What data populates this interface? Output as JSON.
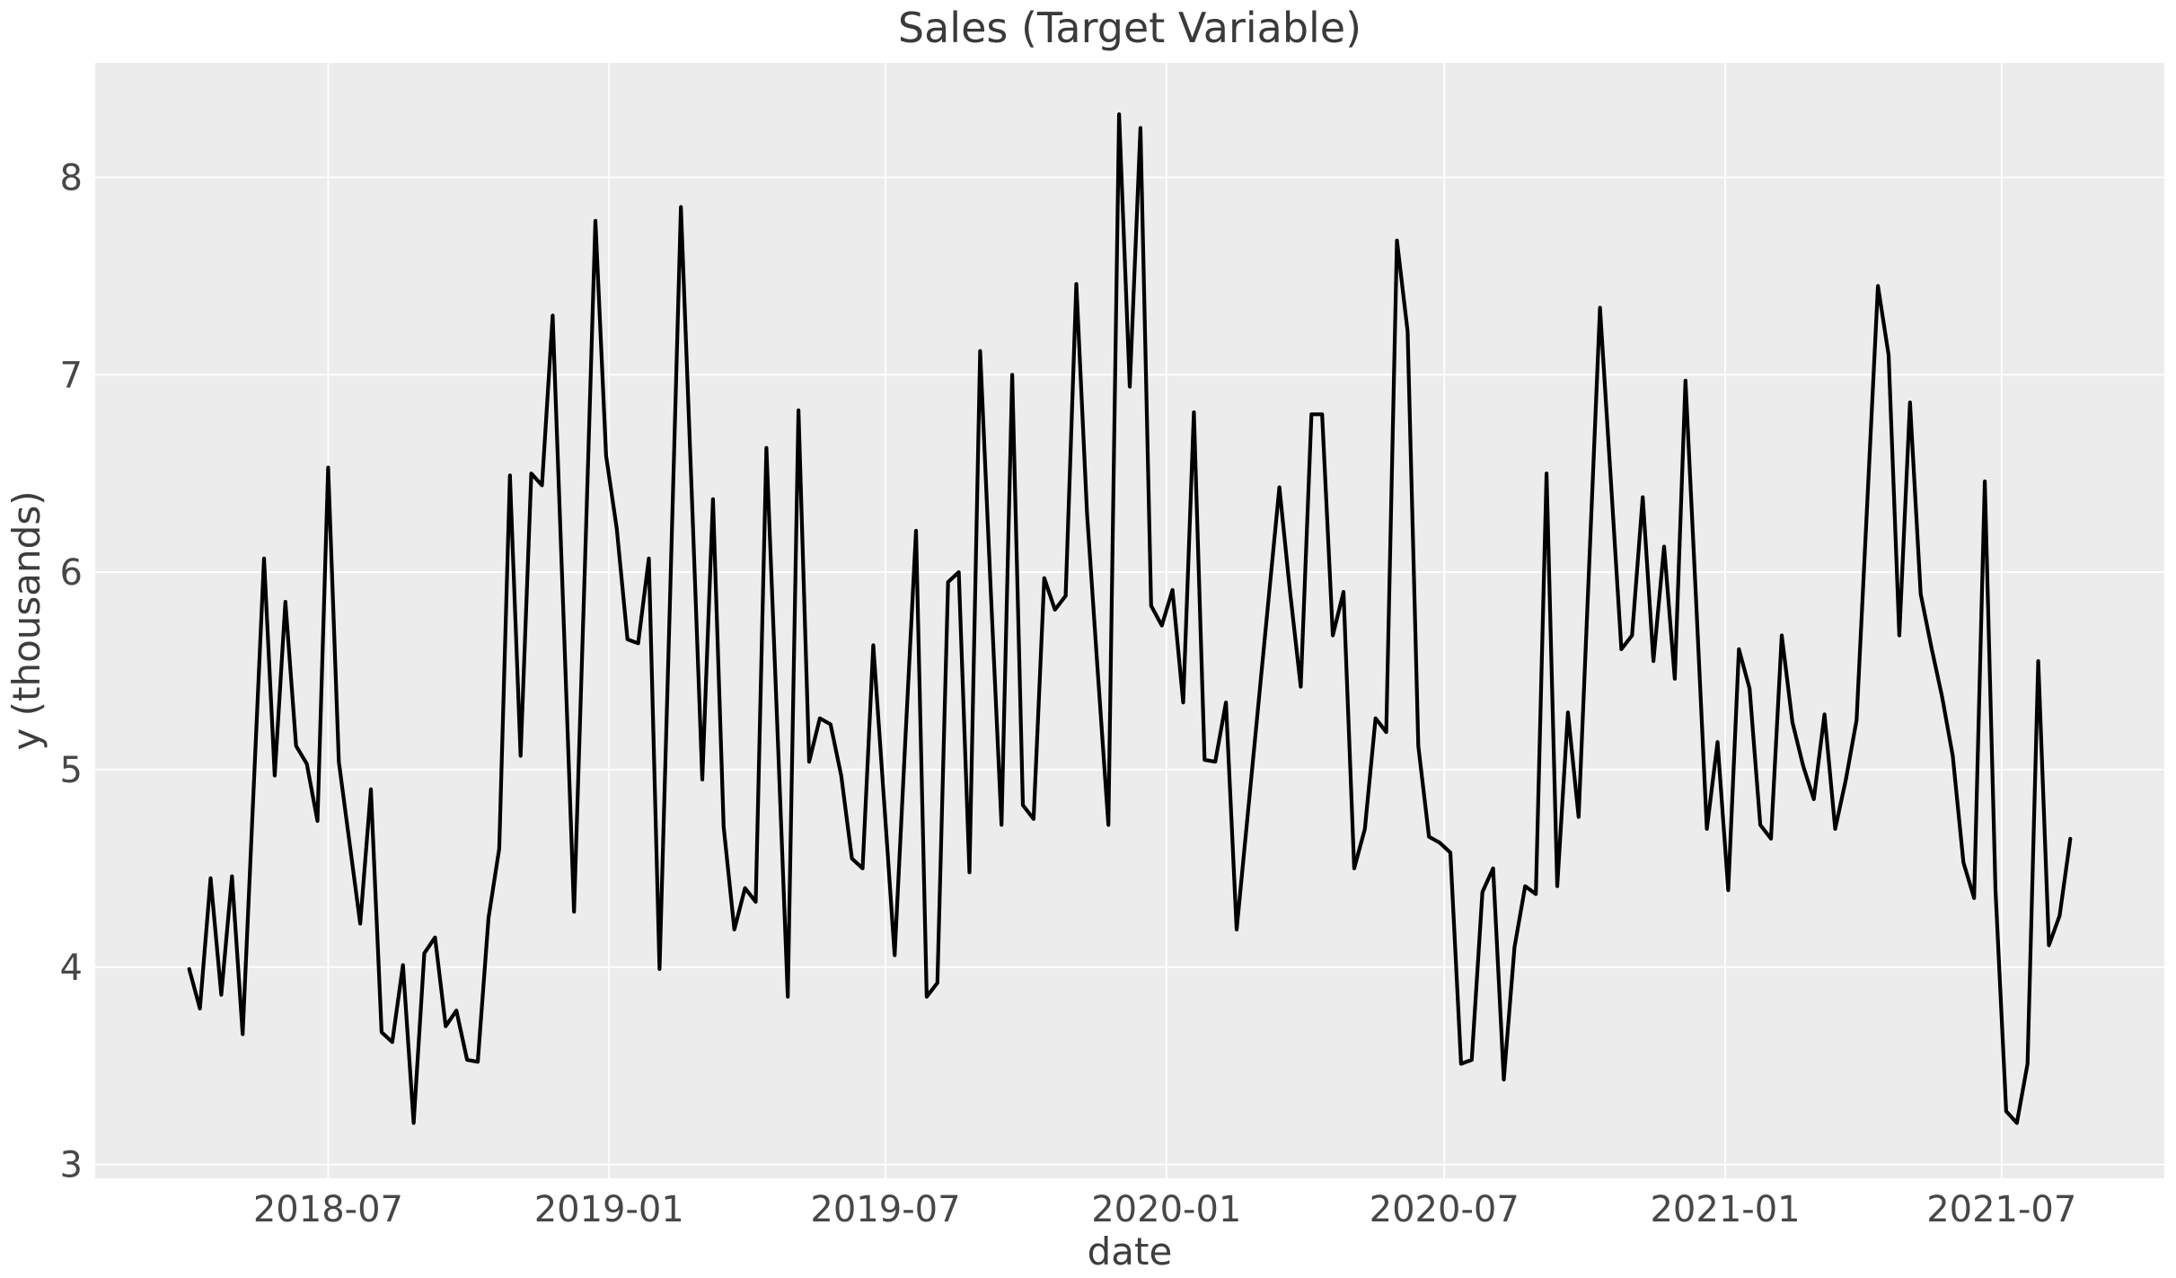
{
  "chart_data": {
    "type": "line",
    "title": "Sales (Target Variable)",
    "xlabel": "date",
    "ylabel": "y (thousands)",
    "grid": true,
    "legend": false,
    "ylim": [
      2.93,
      8.58
    ],
    "y_ticks": [
      3,
      4,
      5,
      6,
      7,
      8
    ],
    "x_margin_frac": 0.05,
    "x_ticks": [
      {
        "label": "2018-07",
        "date": "2018-07-01"
      },
      {
        "label": "2019-01",
        "date": "2019-01-01"
      },
      {
        "label": "2019-07",
        "date": "2019-07-01"
      },
      {
        "label": "2020-01",
        "date": "2020-01-01"
      },
      {
        "label": "2020-07",
        "date": "2020-07-01"
      },
      {
        "label": "2021-01",
        "date": "2021-01-01"
      },
      {
        "label": "2021-07",
        "date": "2021-07-01"
      }
    ],
    "styles": {
      "panel_bg": "#ececec",
      "grid_color": "#ffffff",
      "line_color": "#000000",
      "line_width": 4.2,
      "grid_width": 1.8,
      "title_color": "#3a3a3a",
      "label_color": "#3d3d3d",
      "tick_color": "#474747"
    },
    "series": [
      {
        "name": "y",
        "start_date": "2018-04-01",
        "interval_days": 7,
        "color": "#000000",
        "values": [
          3.99,
          3.79,
          4.45,
          3.86,
          4.46,
          3.66,
          4.87,
          6.07,
          4.97,
          5.85,
          5.12,
          5.03,
          4.74,
          6.53,
          5.04,
          4.63,
          4.22,
          4.9,
          3.67,
          3.62,
          4.01,
          3.21,
          4.07,
          4.15,
          3.7,
          3.78,
          3.53,
          3.52,
          4.25,
          4.6,
          6.49,
          5.07,
          6.5,
          6.44,
          7.3,
          5.8,
          4.28,
          6.0,
          7.78,
          6.59,
          6.22,
          5.66,
          5.64,
          6.07,
          3.99,
          5.9,
          7.85,
          6.42,
          4.95,
          6.37,
          4.71,
          4.19,
          4.4,
          4.33,
          6.63,
          5.25,
          3.85,
          6.82,
          5.04,
          5.26,
          5.23,
          4.97,
          4.55,
          4.5,
          5.63,
          4.85,
          4.06,
          5.15,
          6.21,
          3.85,
          3.92,
          5.95,
          6.0,
          4.48,
          7.12,
          5.9,
          4.72,
          7.0,
          4.82,
          4.75,
          5.97,
          5.81,
          5.88,
          7.46,
          6.3,
          5.5,
          4.72,
          8.32,
          6.94,
          8.25,
          5.83,
          5.73,
          5.91,
          5.34,
          6.81,
          5.05,
          5.04,
          5.34,
          4.19,
          4.75,
          5.31,
          5.87,
          6.43,
          5.9,
          5.42,
          6.8,
          6.8,
          5.68,
          5.9,
          4.5,
          4.7,
          5.26,
          5.19,
          7.68,
          7.22,
          5.12,
          4.66,
          4.63,
          4.58,
          3.51,
          3.53,
          4.38,
          4.5,
          3.43,
          4.1,
          4.41,
          4.37,
          6.5,
          4.41,
          5.29,
          4.76,
          6.05,
          7.34,
          6.48,
          5.61,
          5.68,
          6.38,
          5.55,
          6.13,
          5.46,
          6.97,
          5.85,
          4.7,
          5.14,
          4.39,
          5.61,
          5.41,
          4.72,
          4.65,
          5.68,
          5.24,
          5.02,
          4.85,
          5.28,
          4.7,
          4.95,
          5.25,
          6.35,
          7.45,
          7.1,
          5.68,
          6.86,
          5.89,
          5.62,
          5.37,
          5.07,
          4.53,
          4.35,
          6.46,
          4.39,
          3.27,
          3.21,
          3.51,
          5.55,
          4.11,
          4.26,
          4.65
        ]
      }
    ]
  }
}
